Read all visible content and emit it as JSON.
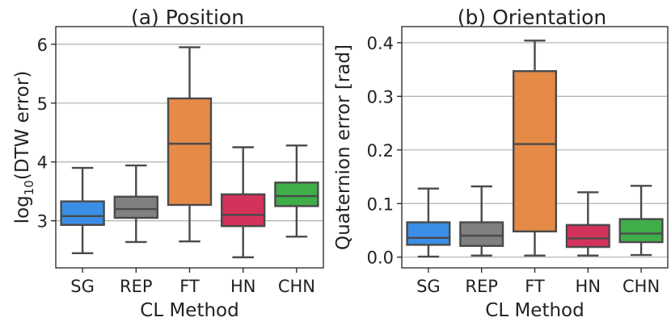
{
  "chart_data": [
    {
      "type": "box",
      "title": "(a) Position",
      "xlabel": "CL Method",
      "ylabel": "log10(DTW error)",
      "ylabel_main": "log",
      "ylabel_sub": "10",
      "ylabel_rest": "(DTW error)",
      "ylim": [
        2.2,
        6.3
      ],
      "yticks": [
        "3",
        "4",
        "5",
        "6"
      ],
      "ytick_values": [
        3,
        4,
        5,
        6
      ],
      "categories": [
        "SG",
        "REP",
        "FT",
        "HN",
        "CHN"
      ],
      "colors": [
        "#3a8ee6",
        "#808080",
        "#e58a47",
        "#d3325a",
        "#3fae49"
      ],
      "boxes": [
        {
          "min": 2.45,
          "q1": 2.93,
          "median": 3.08,
          "q3": 3.33,
          "max": 3.9
        },
        {
          "min": 2.64,
          "q1": 3.05,
          "median": 3.2,
          "q3": 3.41,
          "max": 3.94
        },
        {
          "min": 2.65,
          "q1": 3.27,
          "median": 4.31,
          "q3": 5.08,
          "max": 5.95
        },
        {
          "min": 2.38,
          "q1": 2.91,
          "median": 3.1,
          "q3": 3.45,
          "max": 4.25
        },
        {
          "min": 2.73,
          "q1": 3.25,
          "median": 3.42,
          "q3": 3.65,
          "max": 4.28
        }
      ]
    },
    {
      "type": "box",
      "title": "(b) Orientation",
      "xlabel": "CL Method",
      "ylabel": "Quaternion error [rad]",
      "ylim": [
        -0.02,
        0.43
      ],
      "yticks": [
        "0.0",
        "0.1",
        "0.2",
        "0.3",
        "0.4"
      ],
      "ytick_values": [
        0.0,
        0.1,
        0.2,
        0.3,
        0.4
      ],
      "categories": [
        "SG",
        "REP",
        "FT",
        "HN",
        "CHN"
      ],
      "colors": [
        "#3a8ee6",
        "#808080",
        "#e58a47",
        "#d3325a",
        "#3fae49"
      ],
      "boxes": [
        {
          "min": 0.001,
          "q1": 0.023,
          "median": 0.036,
          "q3": 0.065,
          "max": 0.128
        },
        {
          "min": 0.003,
          "q1": 0.021,
          "median": 0.04,
          "q3": 0.065,
          "max": 0.132
        },
        {
          "min": 0.003,
          "q1": 0.048,
          "median": 0.211,
          "q3": 0.347,
          "max": 0.404
        },
        {
          "min": 0.003,
          "q1": 0.019,
          "median": 0.035,
          "q3": 0.06,
          "max": 0.121
        },
        {
          "min": 0.004,
          "q1": 0.028,
          "median": 0.044,
          "q3": 0.071,
          "max": 0.133
        }
      ]
    }
  ]
}
